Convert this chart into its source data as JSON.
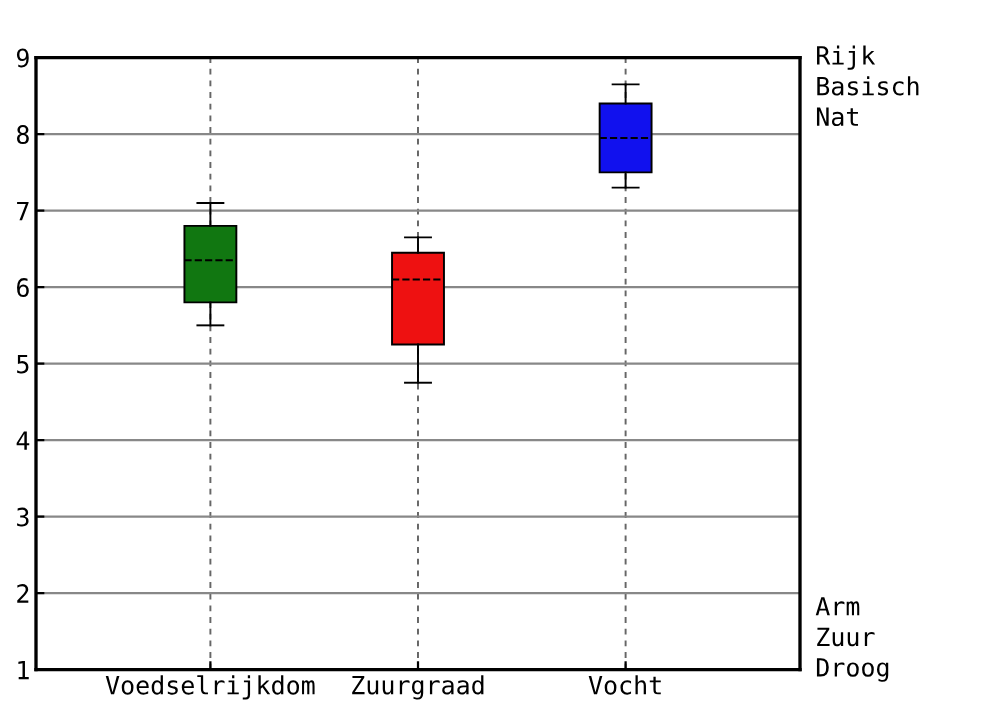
{
  "chart_data": {
    "type": "box",
    "categories": [
      "Voedselrijkdom",
      "Zuurgraad",
      "Vocht"
    ],
    "boxes": [
      {
        "low": 5.5,
        "q1": 5.8,
        "median": 6.35,
        "q3": 6.8,
        "high": 7.1
      },
      {
        "low": 4.75,
        "q1": 5.25,
        "median": 6.1,
        "q3": 6.45,
        "high": 6.65
      },
      {
        "low": 7.3,
        "q1": 7.5,
        "median": 7.95,
        "q3": 8.4,
        "high": 8.65
      }
    ],
    "colors": [
      "#117711",
      "#ee1111",
      "#1111ee"
    ],
    "ylim": [
      1,
      9
    ],
    "yticks": [
      1,
      2,
      3,
      4,
      5,
      6,
      7,
      8,
      9
    ],
    "grid": true,
    "annotations": [
      "Rijk",
      "Basisch",
      "Nat",
      "Arm",
      "Zuur",
      "Droog"
    ]
  }
}
